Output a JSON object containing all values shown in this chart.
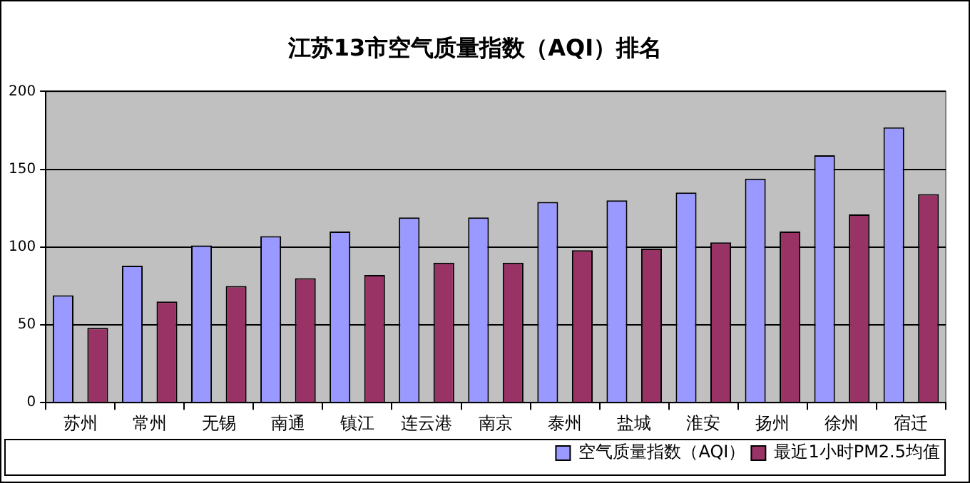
{
  "chart_data": {
    "type": "bar",
    "title": "江苏13市空气质量指数（AQI）排名",
    "categories": [
      "苏州",
      "常州",
      "无锡",
      "南通",
      "镇江",
      "连云港",
      "南京",
      "泰州",
      "盐城",
      "淮安",
      "扬州",
      "徐州",
      "宿迁"
    ],
    "series": [
      {
        "name": "空气质量指数（AQI）",
        "color": "#9999ff",
        "values": [
          69,
          88,
          101,
          107,
          110,
          119,
          119,
          129,
          130,
          135,
          144,
          159,
          177
        ]
      },
      {
        "name": "最近1小时PM2.5均值",
        "color": "#993366",
        "values": [
          48,
          65,
          75,
          80,
          82,
          90,
          90,
          98,
          99,
          103,
          110,
          121,
          134
        ]
      }
    ],
    "ylim": [
      0,
      200
    ],
    "yticks": [
      0,
      50,
      100,
      150,
      200
    ],
    "grid": "y",
    "legend": "bottom right"
  }
}
